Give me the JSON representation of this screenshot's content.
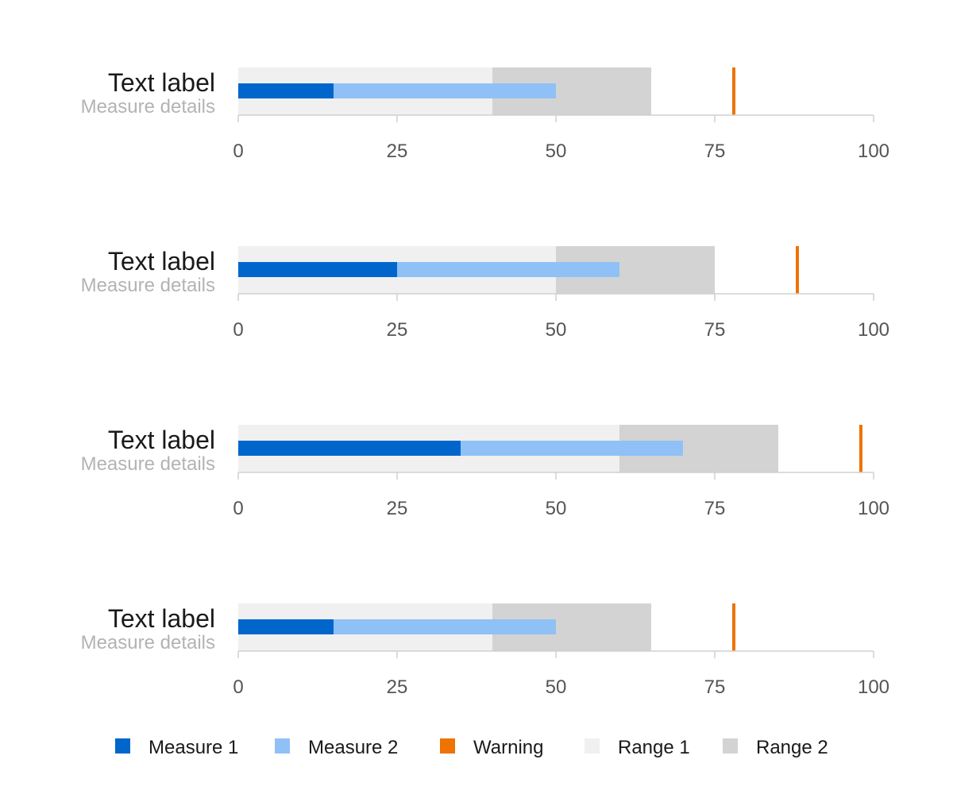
{
  "colors": {
    "measure1": "#0066cc",
    "measure2": "#8fc1f7",
    "warning": "#ee7300",
    "range1": "#f0f0f0",
    "range2": "#d3d3d3",
    "axis": "#d0d0d0",
    "title": "#1a1a1a",
    "subtitle": "#b3b3b3",
    "tick": "#555555"
  },
  "chart_data": {
    "type": "bullet",
    "x_range": [
      0,
      100
    ],
    "ticks": [
      0,
      25,
      50,
      75,
      100
    ],
    "grid": false,
    "legend_position": "bottom",
    "legend": [
      {
        "key": "measure1",
        "label": "Measure 1"
      },
      {
        "key": "measure2",
        "label": "Measure 2"
      },
      {
        "key": "warning",
        "label": "Warning"
      },
      {
        "key": "range1",
        "label": "Range 1"
      },
      {
        "key": "range2",
        "label": "Range 2"
      }
    ],
    "rows": [
      {
        "title": "Text label",
        "subtitle": "Measure details",
        "range1": 40,
        "range2": 65,
        "measure1": 15,
        "measure2": 50,
        "warning": 78
      },
      {
        "title": "Text label",
        "subtitle": "Measure details",
        "range1": 50,
        "range2": 75,
        "measure1": 25,
        "measure2": 60,
        "warning": 88
      },
      {
        "title": "Text label",
        "subtitle": "Measure details",
        "range1": 60,
        "range2": 85,
        "measure1": 35,
        "measure2": 70,
        "warning": 98
      },
      {
        "title": "Text label",
        "subtitle": "Measure details",
        "range1": 40,
        "range2": 65,
        "measure1": 15,
        "measure2": 50,
        "warning": 78
      }
    ]
  }
}
